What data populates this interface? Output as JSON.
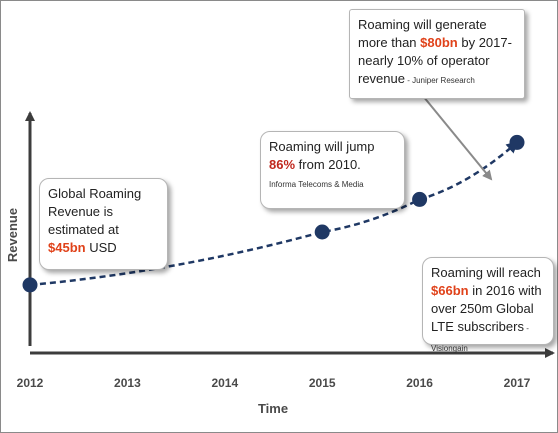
{
  "chart_data": {
    "type": "line",
    "xlabel": "Time",
    "ylabel": "Revenue",
    "x": [
      2012,
      2013,
      2014,
      2015,
      2016,
      2017
    ],
    "tick_labels": [
      "2012",
      "2013",
      "2014",
      "2015",
      "2016",
      "2017"
    ],
    "series": [
      {
        "points": [
          {
            "x": 2012,
            "y": 45
          },
          {
            "x": 2015,
            "y": 58
          },
          {
            "x": 2016,
            "y": 66
          },
          {
            "x": 2017,
            "y": 80
          }
        ]
      }
    ],
    "ylim": [
      30,
      100
    ],
    "grid": false,
    "line_color": "#1f3864"
  },
  "callouts": {
    "c2012": {
      "prefix": "Global Roaming Revenue is estimated at ",
      "highlight": "$45bn",
      "suffix": " USD"
    },
    "c2015": {
      "prefix": "Roaming will jump ",
      "highlight": "86%",
      "suffix": " from 2010.",
      "source": "Informa Telecoms  & Media"
    },
    "c2016": {
      "prefix": "Roaming will reach ",
      "highlight": "$66bn",
      "suffix": " in 2016 with over 250m Global LTE subscribers",
      "source": " - Visiongain"
    },
    "c2017": {
      "prefix": "Roaming will generate more than ",
      "highlight": "$80bn",
      "suffix": " by 2017- nearly 10% of operator revenue",
      "source": " - Juniper Research"
    }
  },
  "colors": {
    "highlight": "#e0421a",
    "axis": "#3c3c3c",
    "marker": "#1f3864"
  }
}
